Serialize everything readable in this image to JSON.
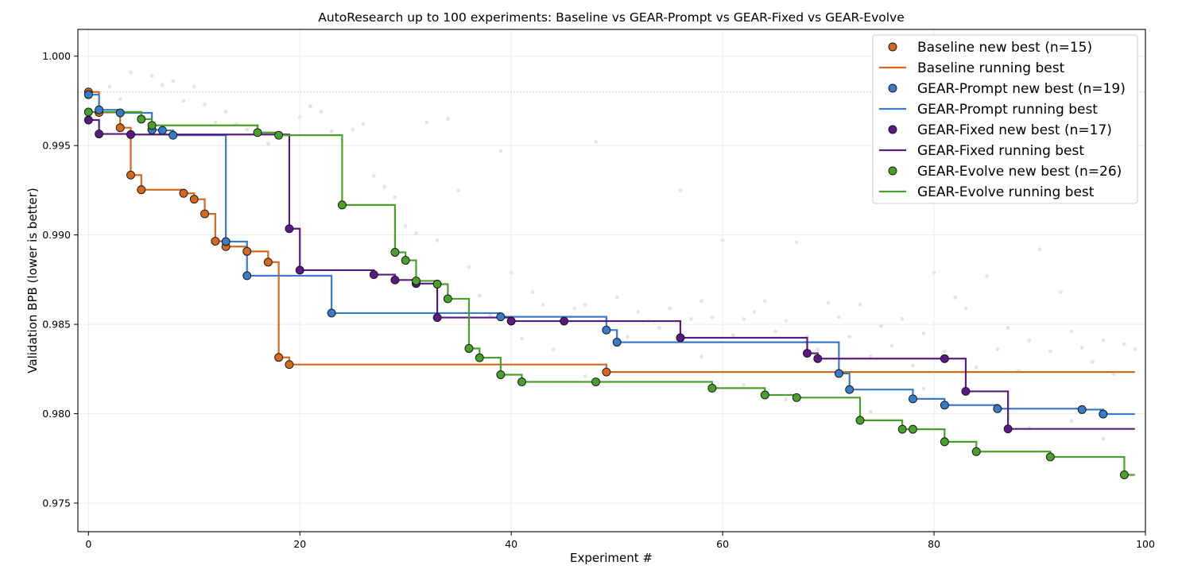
{
  "chart_data": {
    "type": "line",
    "title": "AutoResearch up to 100 experiments: Baseline vs GEAR-Prompt vs GEAR-Fixed vs GEAR-Evolve",
    "xlabel": "Experiment #",
    "ylabel": "Validation BPB (lower is better)",
    "xlim": [
      -1,
      100
    ],
    "ylim": [
      0.9734,
      1.0015
    ],
    "xticks": [
      0,
      20,
      40,
      60,
      80,
      100
    ],
    "yticks": [
      0.975,
      0.98,
      0.985,
      0.99,
      0.995,
      1.0
    ],
    "ytick_labels": [
      "0.975",
      "0.980",
      "0.985",
      "0.990",
      "0.995",
      "1.000"
    ],
    "grid": true,
    "legend_position": "top-right",
    "reference_line": {
      "y": 0.998,
      "style": "dotted",
      "color": "#bbbbbb"
    },
    "series": [
      {
        "key": "baseline",
        "color": "#d2691e",
        "best_label": "Baseline new best (n=15)",
        "line_label": "Baseline running best",
        "best_points": [
          [
            0,
            0.998
          ],
          [
            1,
            0.99685
          ],
          [
            3,
            0.996
          ],
          [
            4,
            0.99335
          ],
          [
            5,
            0.99253
          ],
          [
            9,
            0.99233
          ],
          [
            10,
            0.992
          ],
          [
            11,
            0.99118
          ],
          [
            12,
            0.98965
          ],
          [
            13,
            0.98935
          ],
          [
            15,
            0.98908
          ],
          [
            17,
            0.98848
          ],
          [
            18,
            0.98315
          ],
          [
            19,
            0.98275
          ],
          [
            49,
            0.98233
          ]
        ],
        "end_x": 99
      },
      {
        "key": "prompt",
        "color": "#3a7bc8",
        "best_label": "GEAR-Prompt new best (n=19)",
        "line_label": "GEAR-Prompt running best",
        "best_points": [
          [
            0,
            0.99785
          ],
          [
            1,
            0.997
          ],
          [
            3,
            0.99683
          ],
          [
            6,
            0.99588
          ],
          [
            7,
            0.99585
          ],
          [
            8,
            0.99558
          ],
          [
            13,
            0.98963
          ],
          [
            15,
            0.98772
          ],
          [
            23,
            0.98563
          ],
          [
            39,
            0.98542
          ],
          [
            49,
            0.98468
          ],
          [
            50,
            0.984
          ],
          [
            71,
            0.98225
          ],
          [
            72,
            0.98135
          ],
          [
            78,
            0.98083
          ],
          [
            81,
            0.98048
          ],
          [
            86,
            0.98028
          ],
          [
            94,
            0.98023
          ],
          [
            96,
            0.97998
          ]
        ],
        "end_x": 99
      },
      {
        "key": "fixed",
        "color": "#5b1a82",
        "best_label": "GEAR-Fixed new best (n=17)",
        "line_label": "GEAR-Fixed running best",
        "best_points": [
          [
            0,
            0.99643
          ],
          [
            1,
            0.99565
          ],
          [
            4,
            0.99562
          ],
          [
            19,
            0.99035
          ],
          [
            20,
            0.98803
          ],
          [
            27,
            0.98778
          ],
          [
            29,
            0.98748
          ],
          [
            31,
            0.98728
          ],
          [
            33,
            0.98538
          ],
          [
            40,
            0.98518
          ],
          [
            45,
            0.98518
          ],
          [
            56,
            0.98425
          ],
          [
            68,
            0.98338
          ],
          [
            69,
            0.98308
          ],
          [
            81,
            0.98308
          ],
          [
            83,
            0.98125
          ],
          [
            87,
            0.97915
          ]
        ],
        "end_x": 99
      },
      {
        "key": "evolve",
        "color": "#4aa02c",
        "best_label": "GEAR-Evolve new best (n=26)",
        "line_label": "GEAR-Evolve running best",
        "best_points": [
          [
            0,
            0.99688
          ],
          [
            5,
            0.99648
          ],
          [
            6,
            0.99613
          ],
          [
            16,
            0.99573
          ],
          [
            18,
            0.99558
          ],
          [
            24,
            0.99168
          ],
          [
            29,
            0.98903
          ],
          [
            30,
            0.98858
          ],
          [
            31,
            0.98743
          ],
          [
            33,
            0.98725
          ],
          [
            34,
            0.98643
          ],
          [
            36,
            0.98365
          ],
          [
            37,
            0.98313
          ],
          [
            39,
            0.98218
          ],
          [
            41,
            0.98178
          ],
          [
            48,
            0.98178
          ],
          [
            59,
            0.98143
          ],
          [
            64,
            0.98105
          ],
          [
            67,
            0.9809
          ],
          [
            73,
            0.97963
          ],
          [
            77,
            0.97913
          ],
          [
            78,
            0.97913
          ],
          [
            81,
            0.97843
          ],
          [
            84,
            0.97788
          ],
          [
            91,
            0.97758
          ],
          [
            98,
            0.97658
          ]
        ],
        "end_x": 99
      }
    ],
    "background_points": [
      [
        2,
        0.9983
      ],
      [
        3,
        0.9976
      ],
      [
        4,
        0.9991
      ],
      [
        6,
        0.9989
      ],
      [
        7,
        0.9984
      ],
      [
        8,
        0.9986
      ],
      [
        9,
        0.9975
      ],
      [
        10,
        0.9983
      ],
      [
        11,
        0.9973
      ],
      [
        12,
        0.9963
      ],
      [
        13,
        0.9969
      ],
      [
        14,
        0.9962
      ],
      [
        15,
        0.9959
      ],
      [
        16,
        0.9961
      ],
      [
        17,
        0.9951
      ],
      [
        18,
        0.9956
      ],
      [
        20,
        0.9966
      ],
      [
        21,
        0.9972
      ],
      [
        22,
        0.9969
      ],
      [
        23,
        0.9958
      ],
      [
        25,
        0.9959
      ],
      [
        26,
        0.9962
      ],
      [
        27,
        0.9933
      ],
      [
        28,
        0.9927
      ],
      [
        29,
        0.9921
      ],
      [
        30,
        0.9905
      ],
      [
        31,
        0.9901
      ],
      [
        32,
        0.9963
      ],
      [
        33,
        0.9897
      ],
      [
        34,
        0.9965
      ],
      [
        35,
        0.9925
      ],
      [
        36,
        0.9882
      ],
      [
        37,
        0.9866
      ],
      [
        38,
        0.9855
      ],
      [
        39,
        0.9947
      ],
      [
        40,
        0.9879
      ],
      [
        41,
        0.9842
      ],
      [
        42,
        0.9868
      ],
      [
        43,
        0.9861
      ],
      [
        44,
        0.9836
      ],
      [
        45,
        0.9852
      ],
      [
        46,
        0.9859
      ],
      [
        47,
        0.9861
      ],
      [
        48,
        0.9952
      ],
      [
        49,
        0.9853
      ],
      [
        50,
        0.9865
      ],
      [
        51,
        0.9843
      ],
      [
        52,
        0.9857
      ],
      [
        53,
        0.9852
      ],
      [
        54,
        0.9848
      ],
      [
        55,
        0.9859
      ],
      [
        56,
        0.9925
      ],
      [
        57,
        0.9853
      ],
      [
        58,
        0.9863
      ],
      [
        59,
        0.9854
      ],
      [
        60,
        0.9897
      ],
      [
        61,
        0.9844
      ],
      [
        62,
        0.9853
      ],
      [
        63,
        0.9857
      ],
      [
        64,
        0.9863
      ],
      [
        65,
        0.9846
      ],
      [
        66,
        0.9852
      ],
      [
        67,
        0.9896
      ],
      [
        68,
        0.9843
      ],
      [
        69,
        0.9836
      ],
      [
        70,
        0.9862
      ],
      [
        71,
        0.9854
      ],
      [
        72,
        0.9843
      ],
      [
        73,
        0.9861
      ],
      [
        74,
        0.9832
      ],
      [
        75,
        0.9849
      ],
      [
        76,
        0.9838
      ],
      [
        77,
        0.9853
      ],
      [
        78,
        0.9827
      ],
      [
        79,
        0.9845
      ],
      [
        80,
        0.9879
      ],
      [
        81,
        0.9835
      ],
      [
        82,
        0.9865
      ],
      [
        83,
        0.9859
      ],
      [
        84,
        0.9826
      ],
      [
        85,
        0.9877
      ],
      [
        86,
        0.9836
      ],
      [
        87,
        0.9848
      ],
      [
        88,
        0.9824
      ],
      [
        89,
        0.9841
      ],
      [
        90,
        0.9892
      ],
      [
        91,
        0.9835
      ],
      [
        92,
        0.9868
      ],
      [
        93,
        0.9846
      ],
      [
        94,
        0.9837
      ],
      [
        95,
        0.9829
      ],
      [
        96,
        0.9841
      ],
      [
        97,
        0.9822
      ],
      [
        98,
        0.9839
      ],
      [
        99,
        0.9836
      ],
      [
        47,
        0.9821
      ],
      [
        58,
        0.9832
      ],
      [
        62,
        0.9816
      ],
      [
        66,
        0.9808
      ],
      [
        74,
        0.9801
      ],
      [
        79,
        0.9814
      ],
      [
        86,
        0.9805
      ],
      [
        89,
        0.9792
      ],
      [
        93,
        0.9796
      ],
      [
        96,
        0.9786
      ]
    ]
  }
}
